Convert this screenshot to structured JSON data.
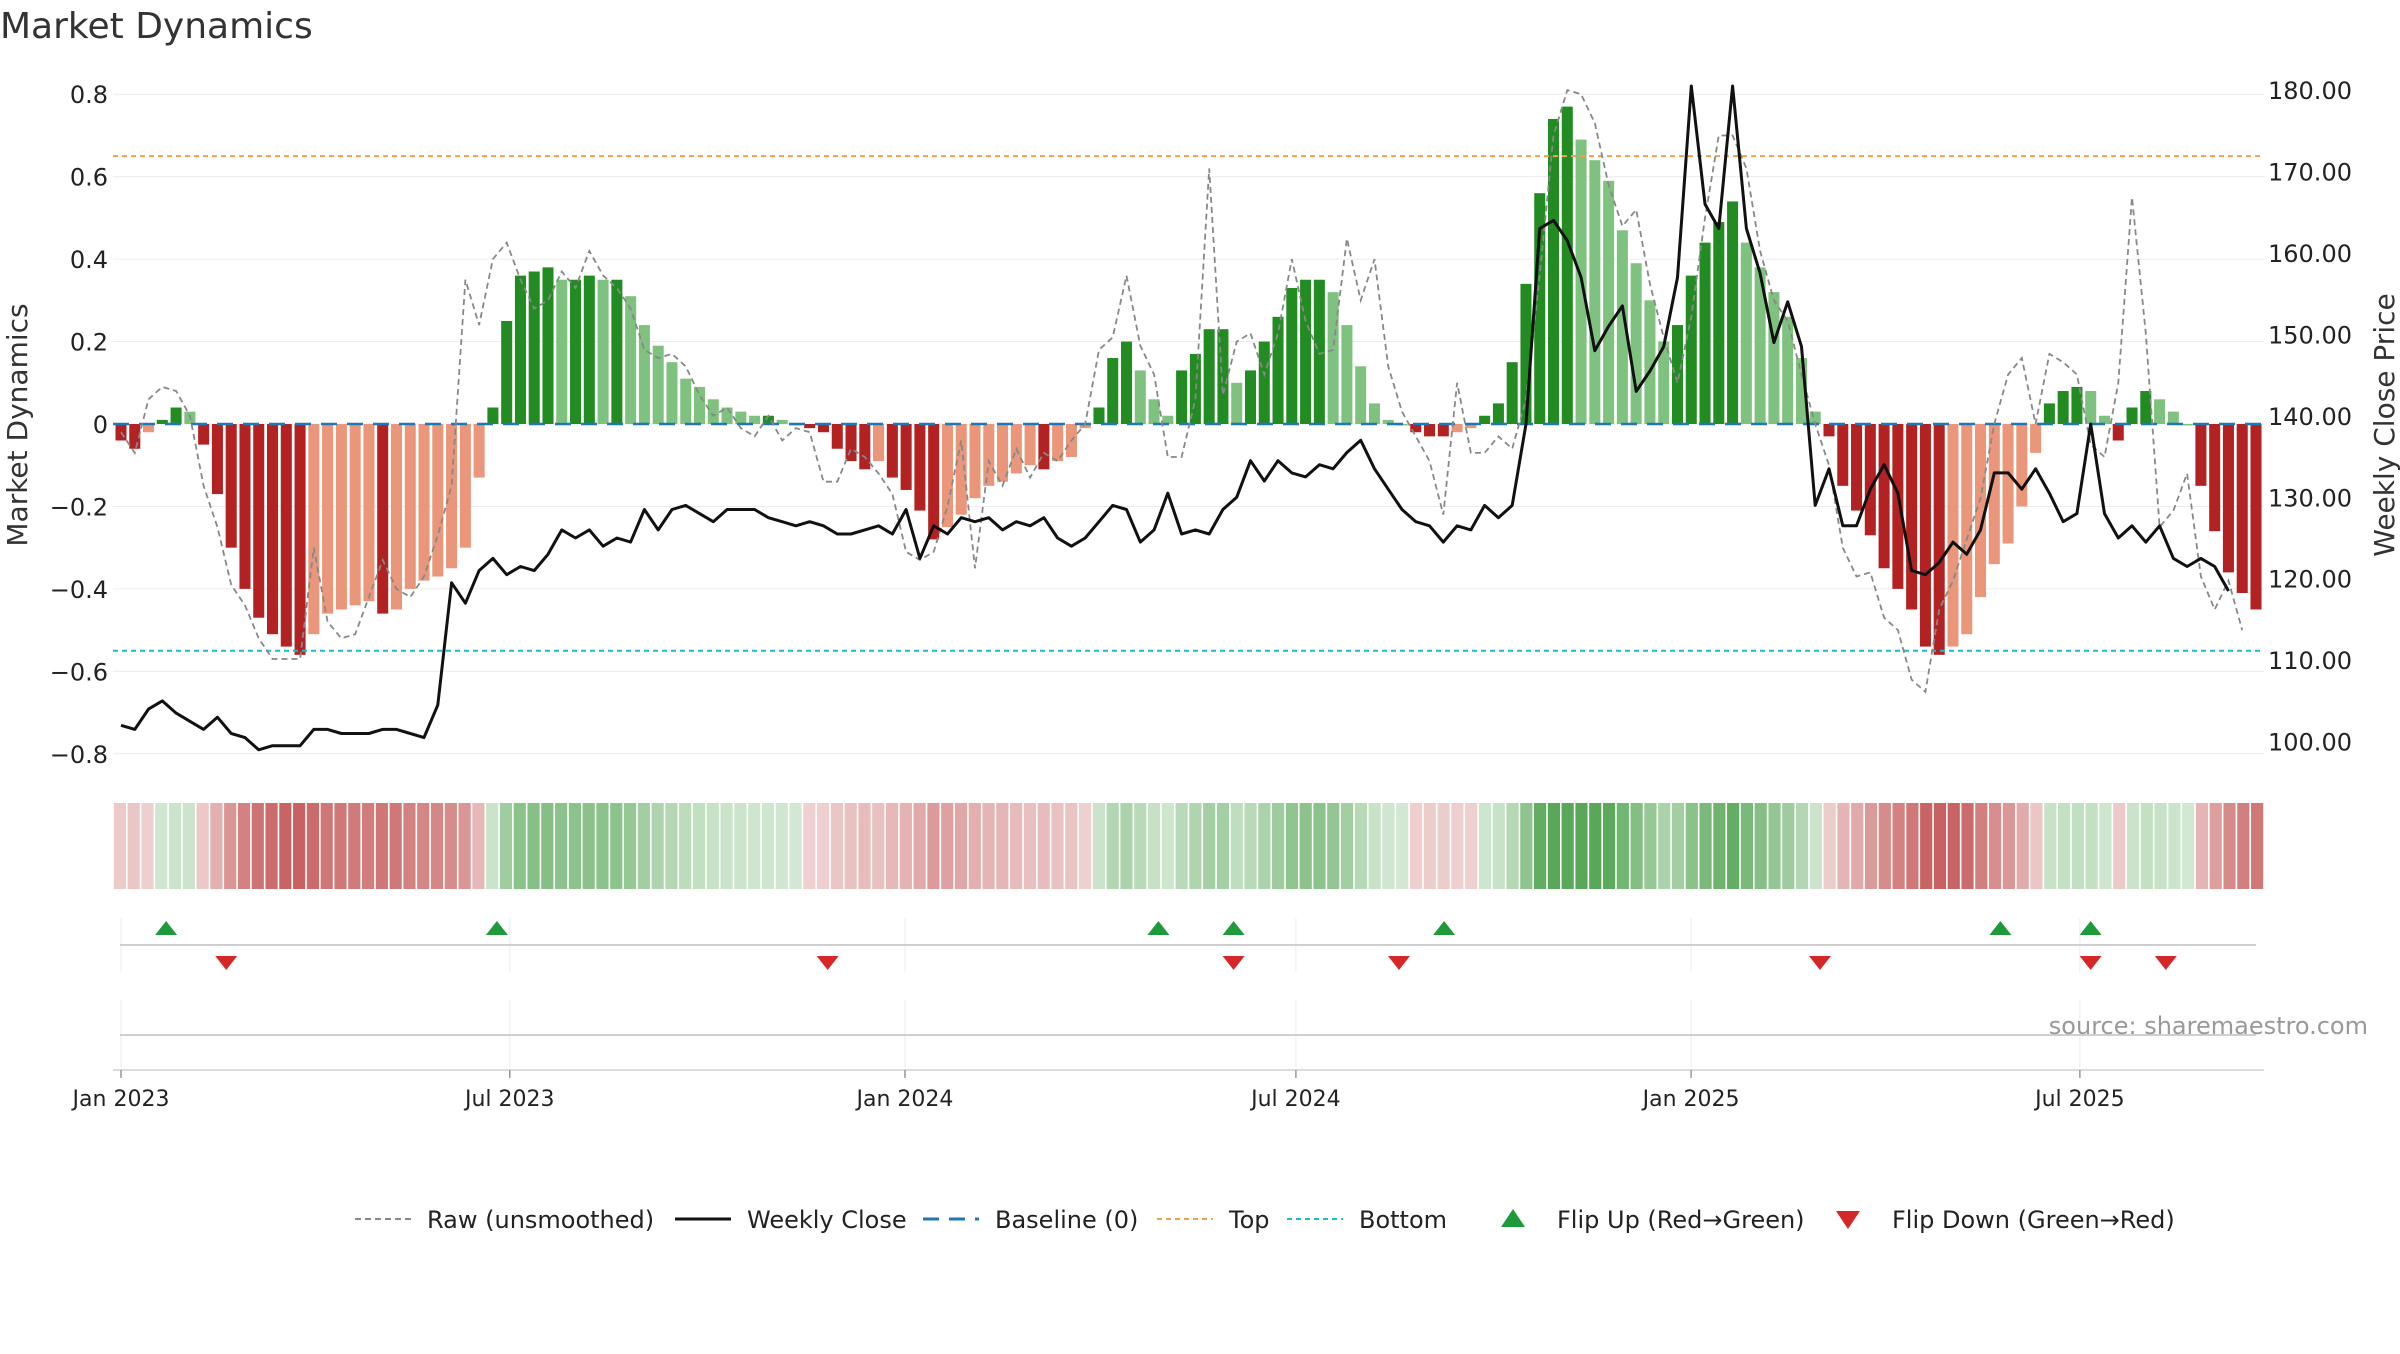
{
  "title": "Market Dynamics",
  "source": "source: sharemaestro.com",
  "colors": {
    "strong_red": "#b22222",
    "light_red": "#e9967a",
    "strong_green": "#228b22",
    "light_green": "#7fc27f",
    "raw": "#888888",
    "close": "#111111",
    "baseline": "#1f77b4",
    "top": "#f0a050",
    "bottom": "#17becf",
    "flip_up": "#1e9a3a",
    "flip_down": "#d62728"
  },
  "chart_data": {
    "type": "bar",
    "title": "Market Dynamics",
    "ylabel": "Market Dynamics",
    "y2label": "Weekly Close Price",
    "ylim": [
      -0.82,
      0.82
    ],
    "y2lim": [
      97.5,
      180.5
    ],
    "yticks": [
      "0.8",
      "0.6",
      "0.4",
      "0.2",
      "0",
      "−0.2",
      "−0.4",
      "−0.6",
      "−0.8"
    ],
    "y2ticks": [
      "180.00",
      "170.00",
      "160.00",
      "150.00",
      "140.00",
      "130.00",
      "120.00",
      "110.00",
      "100.00"
    ],
    "xticks": [
      "Jan 2023",
      "Jul 2023",
      "Jan 2024",
      "Jul 2024",
      "Jan 2025",
      "Jul 2025"
    ],
    "x_start": "2023-01-01",
    "x_end": "2025-09-21",
    "top_level": 0.65,
    "bottom_level": -0.55,
    "baseline": 0,
    "bars": [
      -0.04,
      -0.06,
      -0.02,
      0.01,
      0.04,
      0.03,
      -0.05,
      -0.17,
      -0.3,
      -0.4,
      -0.47,
      -0.51,
      -0.54,
      -0.56,
      -0.51,
      -0.46,
      -0.45,
      -0.44,
      -0.43,
      -0.46,
      -0.45,
      -0.4,
      -0.38,
      -0.37,
      -0.35,
      -0.3,
      -0.13,
      0.04,
      0.25,
      0.36,
      0.37,
      0.38,
      0.35,
      0.35,
      0.36,
      0.35,
      0.35,
      0.31,
      0.24,
      0.19,
      0.15,
      0.11,
      0.09,
      0.06,
      0.04,
      0.03,
      0.02,
      0.02,
      0.01,
      0.0,
      -0.01,
      -0.02,
      -0.06,
      -0.09,
      -0.11,
      -0.09,
      -0.13,
      -0.16,
      -0.21,
      -0.28,
      -0.25,
      -0.22,
      -0.18,
      -0.15,
      -0.14,
      -0.12,
      -0.1,
      -0.11,
      -0.09,
      -0.08,
      -0.01,
      0.04,
      0.16,
      0.2,
      0.13,
      0.06,
      0.02,
      0.13,
      0.17,
      0.23,
      0.23,
      0.1,
      0.13,
      0.2,
      0.26,
      0.33,
      0.35,
      0.35,
      0.32,
      0.24,
      0.14,
      0.05,
      0.01,
      0.0,
      -0.02,
      -0.03,
      -0.03,
      -0.02,
      -0.01,
      0.02,
      0.05,
      0.15,
      0.34,
      0.56,
      0.74,
      0.77,
      0.69,
      0.64,
      0.59,
      0.47,
      0.39,
      0.3,
      0.2,
      0.24,
      0.36,
      0.44,
      0.49,
      0.54,
      0.44,
      0.38,
      0.32,
      0.26,
      0.16,
      0.03,
      -0.03,
      -0.15,
      -0.21,
      -0.27,
      -0.35,
      -0.4,
      -0.45,
      -0.54,
      -0.56,
      -0.54,
      -0.51,
      -0.42,
      -0.34,
      -0.29,
      -0.2,
      -0.07,
      0.05,
      0.08,
      0.09,
      0.08,
      0.02,
      -0.04,
      0.04,
      0.08,
      0.06,
      0.03,
      0.0,
      -0.15,
      -0.26,
      -0.36,
      -0.41,
      -0.45
    ],
    "raw": [
      -0.02,
      -0.07,
      0.06,
      0.09,
      0.08,
      0.02,
      -0.15,
      -0.25,
      -0.39,
      -0.44,
      -0.52,
      -0.57,
      -0.57,
      -0.57,
      -0.3,
      -0.48,
      -0.52,
      -0.51,
      -0.42,
      -0.33,
      -0.4,
      -0.42,
      -0.37,
      -0.27,
      -0.15,
      0.35,
      0.24,
      0.4,
      0.44,
      0.35,
      0.28,
      0.3,
      0.37,
      0.33,
      0.42,
      0.36,
      0.33,
      0.28,
      0.18,
      0.16,
      0.17,
      0.14,
      0.07,
      0.02,
      0.04,
      -0.01,
      -0.03,
      0.02,
      -0.04,
      -0.01,
      -0.02,
      -0.14,
      -0.14,
      -0.06,
      -0.08,
      -0.12,
      -0.17,
      -0.31,
      -0.33,
      -0.31,
      -0.2,
      -0.04,
      -0.35,
      -0.09,
      -0.15,
      -0.06,
      -0.13,
      -0.07,
      -0.09,
      -0.04,
      0.0,
      0.18,
      0.21,
      0.36,
      0.19,
      0.12,
      -0.08,
      -0.08,
      0.06,
      0.62,
      0.07,
      0.2,
      0.22,
      0.12,
      0.22,
      0.4,
      0.25,
      0.17,
      0.18,
      0.45,
      0.3,
      0.4,
      0.14,
      0.03,
      -0.03,
      -0.09,
      -0.22,
      0.1,
      -0.07,
      -0.07,
      -0.03,
      -0.06,
      0.06,
      0.36,
      0.7,
      0.81,
      0.8,
      0.73,
      0.58,
      0.48,
      0.52,
      0.34,
      0.21,
      0.1,
      0.26,
      0.5,
      0.7,
      0.7,
      0.62,
      0.42,
      0.3,
      0.25,
      0.12,
      0.0,
      -0.1,
      -0.3,
      -0.37,
      -0.36,
      -0.47,
      -0.5,
      -0.62,
      -0.65,
      -0.45,
      -0.38,
      -0.28,
      -0.18,
      0.0,
      0.12,
      0.16,
      0.0,
      0.17,
      0.15,
      0.12,
      -0.05,
      -0.08,
      0.1,
      0.55,
      0.22,
      -0.25,
      -0.21,
      -0.12,
      -0.37,
      -0.45,
      -0.38,
      -0.5
    ],
    "close": [
      102.0,
      101.5,
      104.0,
      105.0,
      103.5,
      102.5,
      101.5,
      103.0,
      101.0,
      100.5,
      99.0,
      99.5,
      99.5,
      99.5,
      101.5,
      101.5,
      101.0,
      101.0,
      101.0,
      101.5,
      101.5,
      101.0,
      100.5,
      104.5,
      119.5,
      117.0,
      121.0,
      122.5,
      120.5,
      121.5,
      121.0,
      123.0,
      126.0,
      125.0,
      126.0,
      124.0,
      125.0,
      124.5,
      128.5,
      126.0,
      128.5,
      129.0,
      128.0,
      127.0,
      128.5,
      128.5,
      128.5,
      127.5,
      127.0,
      126.5,
      127.0,
      126.5,
      125.5,
      125.5,
      126.0,
      126.5,
      125.5,
      128.5,
      122.5,
      126.5,
      125.5,
      127.5,
      127.0,
      127.5,
      126.0,
      127.0,
      126.5,
      127.5,
      125.0,
      124.0,
      125.0,
      127.0,
      129.0,
      128.5,
      124.5,
      126.0,
      130.5,
      125.5,
      126.0,
      125.5,
      128.5,
      130.0,
      134.5,
      132.0,
      134.5,
      133.0,
      132.5,
      134.0,
      133.5,
      135.5,
      137.0,
      133.5,
      131.0,
      128.5,
      127.0,
      126.5,
      124.5,
      126.5,
      126.0,
      129.0,
      127.5,
      129.0,
      139.0,
      163.0,
      164.0,
      161.5,
      157.0,
      148.0,
      151.0,
      153.5,
      143.0,
      145.5,
      148.5,
      157.0,
      180.5,
      166.0,
      163.0,
      180.5,
      163.0,
      157.5,
      149.0,
      154.0,
      148.5,
      129.0,
      133.5,
      126.5,
      126.5,
      131.0,
      134.0,
      130.5,
      121.0,
      120.5,
      122.0,
      124.5,
      123.0,
      126.0,
      133.0,
      133.0,
      131.0,
      133.5,
      130.5,
      127.0,
      128.0,
      139.0,
      128.0,
      125.0,
      126.5,
      124.5,
      126.5,
      122.5,
      121.5,
      122.5,
      121.5,
      118.5
    ],
    "flip_up": [
      "2023-01-22",
      "2023-06-25",
      "2024-04-28",
      "2024-06-02",
      "2024-09-08",
      "2025-05-25",
      "2025-07-06"
    ],
    "flip_down": [
      "2023-02-19",
      "2023-11-26",
      "2024-06-02",
      "2024-08-18",
      "2025-03-02",
      "2025-07-06",
      "2025-08-10"
    ],
    "legend": [
      {
        "label": "Raw (unsmoothed)",
        "style": "dashed-gray"
      },
      {
        "label": "Weekly Close",
        "style": "solid-black"
      },
      {
        "label": "Baseline (0)",
        "style": "dashed-blue"
      },
      {
        "label": "Top",
        "style": "dotted-orange"
      },
      {
        "label": "Bottom",
        "style": "dotted-cyan"
      },
      {
        "label": "Flip Up (Red→Green)",
        "style": "triangle-up-green"
      },
      {
        "label": "Flip Down (Green→Red)",
        "style": "triangle-down-red"
      }
    ],
    "legend_position": "bottom"
  }
}
